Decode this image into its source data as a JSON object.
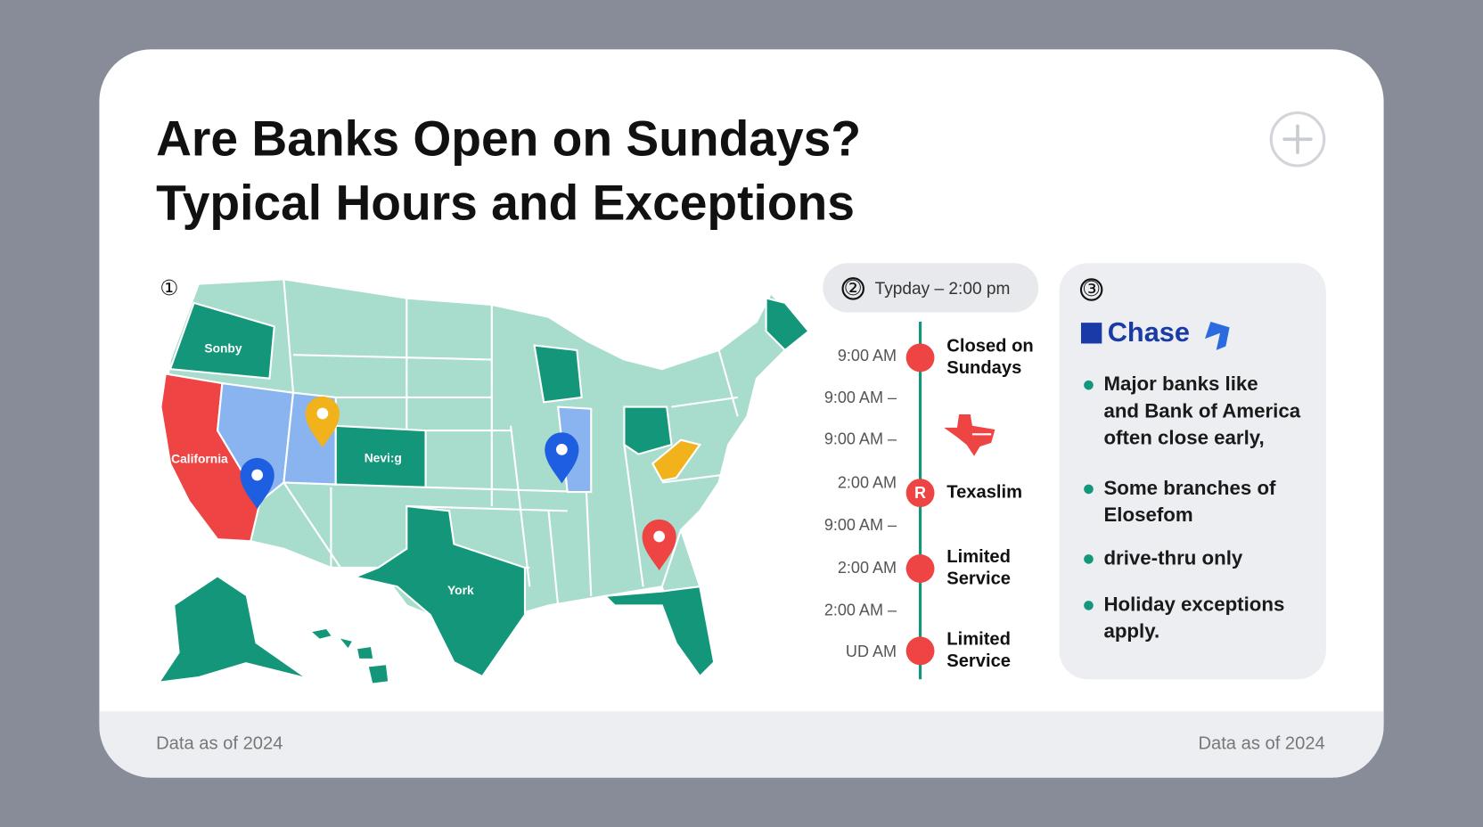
{
  "header": {
    "title_lines": [
      "Are Banks Open on Sundays?",
      "Typical Hours and Exceptions"
    ]
  },
  "map": {
    "badge": "①",
    "labels": [
      "Sonby",
      "California",
      "Nevi:g",
      "York"
    ]
  },
  "timeline": {
    "badge": "②",
    "heading": "Typday – 2:00 pm",
    "times": [
      "9:00 AM",
      "9:00 AM –",
      "9:00 AM –",
      "2:00 AM",
      "9:00 AM –",
      "2:00 AM",
      "2:00 AM –",
      "UD AM"
    ],
    "events": [
      {
        "label_lines": [
          "Closed on",
          "Sundays"
        ]
      },
      {
        "icon": "R",
        "label_lines": [
          "Texaslim"
        ]
      },
      {
        "label_lines": [
          "Limited",
          "Service"
        ]
      },
      {
        "label_lines": [
          "Limited",
          "Service"
        ]
      }
    ]
  },
  "banks": {
    "badge": "③",
    "brand": "Chase",
    "bullets": [
      [
        "Major banks like",
        "and Bank of America",
        "often close early,"
      ],
      [
        "Some branches of",
        "Elosefom"
      ],
      [
        "drive-thru only"
      ],
      [
        "Holiday exceptions",
        "apply."
      ]
    ]
  },
  "footer": {
    "left": "Data as of 2024",
    "right": "Data as of 2024"
  }
}
